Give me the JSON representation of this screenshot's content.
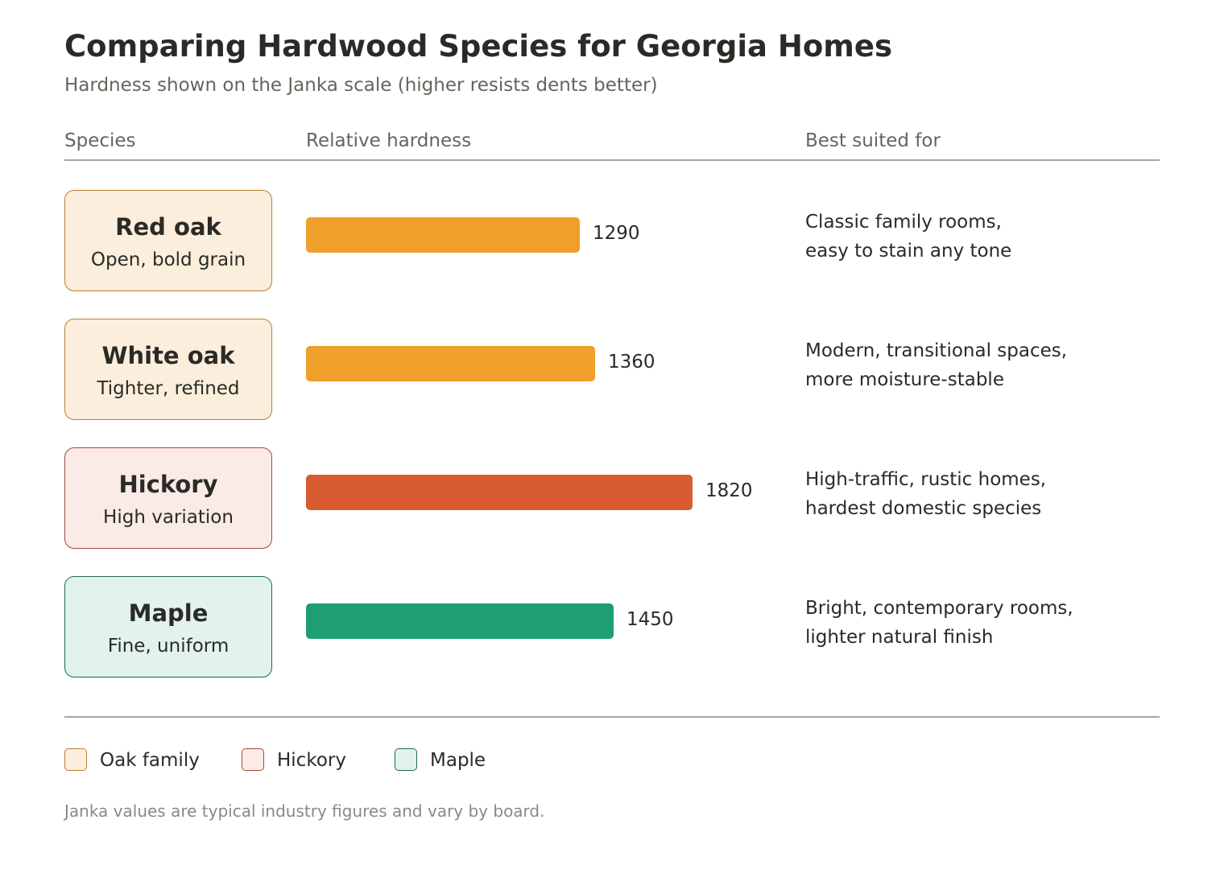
{
  "chart_data": {
    "type": "bar",
    "orientation": "horizontal",
    "title": "Comparing Hardwood Species for Georgia Homes",
    "subtitle": "Hardness shown on the Janka scale (higher resists dents better)",
    "column_headers": {
      "species": "Species",
      "hardness": "Relative hardness",
      "suited": "Best suited for"
    },
    "categories": [
      "Red oak",
      "White oak",
      "Hickory",
      "Maple"
    ],
    "values": [
      1290,
      1360,
      1820,
      1450
    ],
    "rows": [
      {
        "name": "Red oak",
        "grain": "Open, bold grain",
        "janka": 1290,
        "value_label": "1290",
        "suited": [
          "Classic family rooms,",
          "easy to stain any tone"
        ],
        "group": "oak"
      },
      {
        "name": "White oak",
        "grain": "Tighter, refined",
        "janka": 1360,
        "value_label": "1360",
        "suited": [
          "Modern, transitional spaces,",
          "more moisture-stable"
        ],
        "group": "oak"
      },
      {
        "name": "Hickory",
        "grain": "High variation",
        "janka": 1820,
        "value_label": "1820",
        "suited": [
          "High-traffic, rustic homes,",
          "hardest domestic species"
        ],
        "group": "hickory"
      },
      {
        "name": "Maple",
        "grain": "Fine, uniform",
        "janka": 1450,
        "value_label": "1450",
        "suited": [
          "Bright, contemporary rooms,",
          "lighter natural finish"
        ],
        "group": "maple"
      }
    ],
    "groups": {
      "oak": {
        "fill": "#fbeedc",
        "border": "#b8802e",
        "bar": "#ef9f2a"
      },
      "hickory": {
        "fill": "#faebe6",
        "border": "#a4493a",
        "bar": "#d95b31"
      },
      "maple": {
        "fill": "#e1f3ec",
        "border": "#1e6b53",
        "bar": "#1f9e76"
      }
    },
    "legend": [
      {
        "label": "Oak family",
        "group": "oak"
      },
      {
        "label": "Hickory",
        "group": "hickory"
      },
      {
        "label": "Maple",
        "group": "maple"
      }
    ],
    "legend_position": "bottom-left",
    "footnote": "Janka values are typical industry figures and vary by board.",
    "grid": false
  }
}
